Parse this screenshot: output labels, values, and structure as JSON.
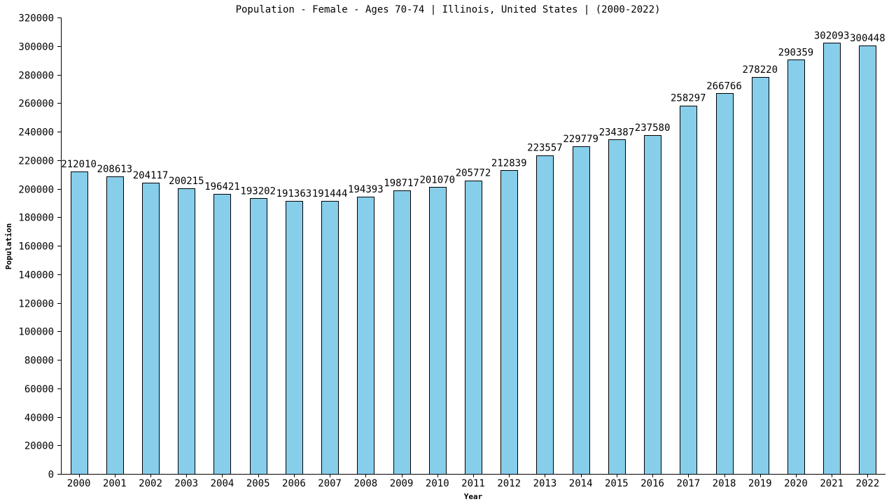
{
  "chart_data": {
    "type": "bar",
    "title": "Population - Female - Ages 70-74 | Illinois, United States |  (2000-2022)",
    "xlabel": "Year",
    "ylabel": "Population",
    "ylim": [
      0,
      320000
    ],
    "ytick_step": 20000,
    "bar_color": "#87ceeb",
    "grid": false,
    "categories": [
      "2000",
      "2001",
      "2002",
      "2003",
      "2004",
      "2005",
      "2006",
      "2007",
      "2008",
      "2009",
      "2010",
      "2011",
      "2012",
      "2013",
      "2014",
      "2015",
      "2016",
      "2017",
      "2018",
      "2019",
      "2020",
      "2021",
      "2022"
    ],
    "values": [
      212010,
      208613,
      204117,
      200215,
      196421,
      193202,
      191363,
      191444,
      194393,
      198717,
      201070,
      205772,
      212839,
      223557,
      229779,
      234387,
      237580,
      258297,
      266766,
      278220,
      290359,
      302093,
      300448
    ]
  }
}
